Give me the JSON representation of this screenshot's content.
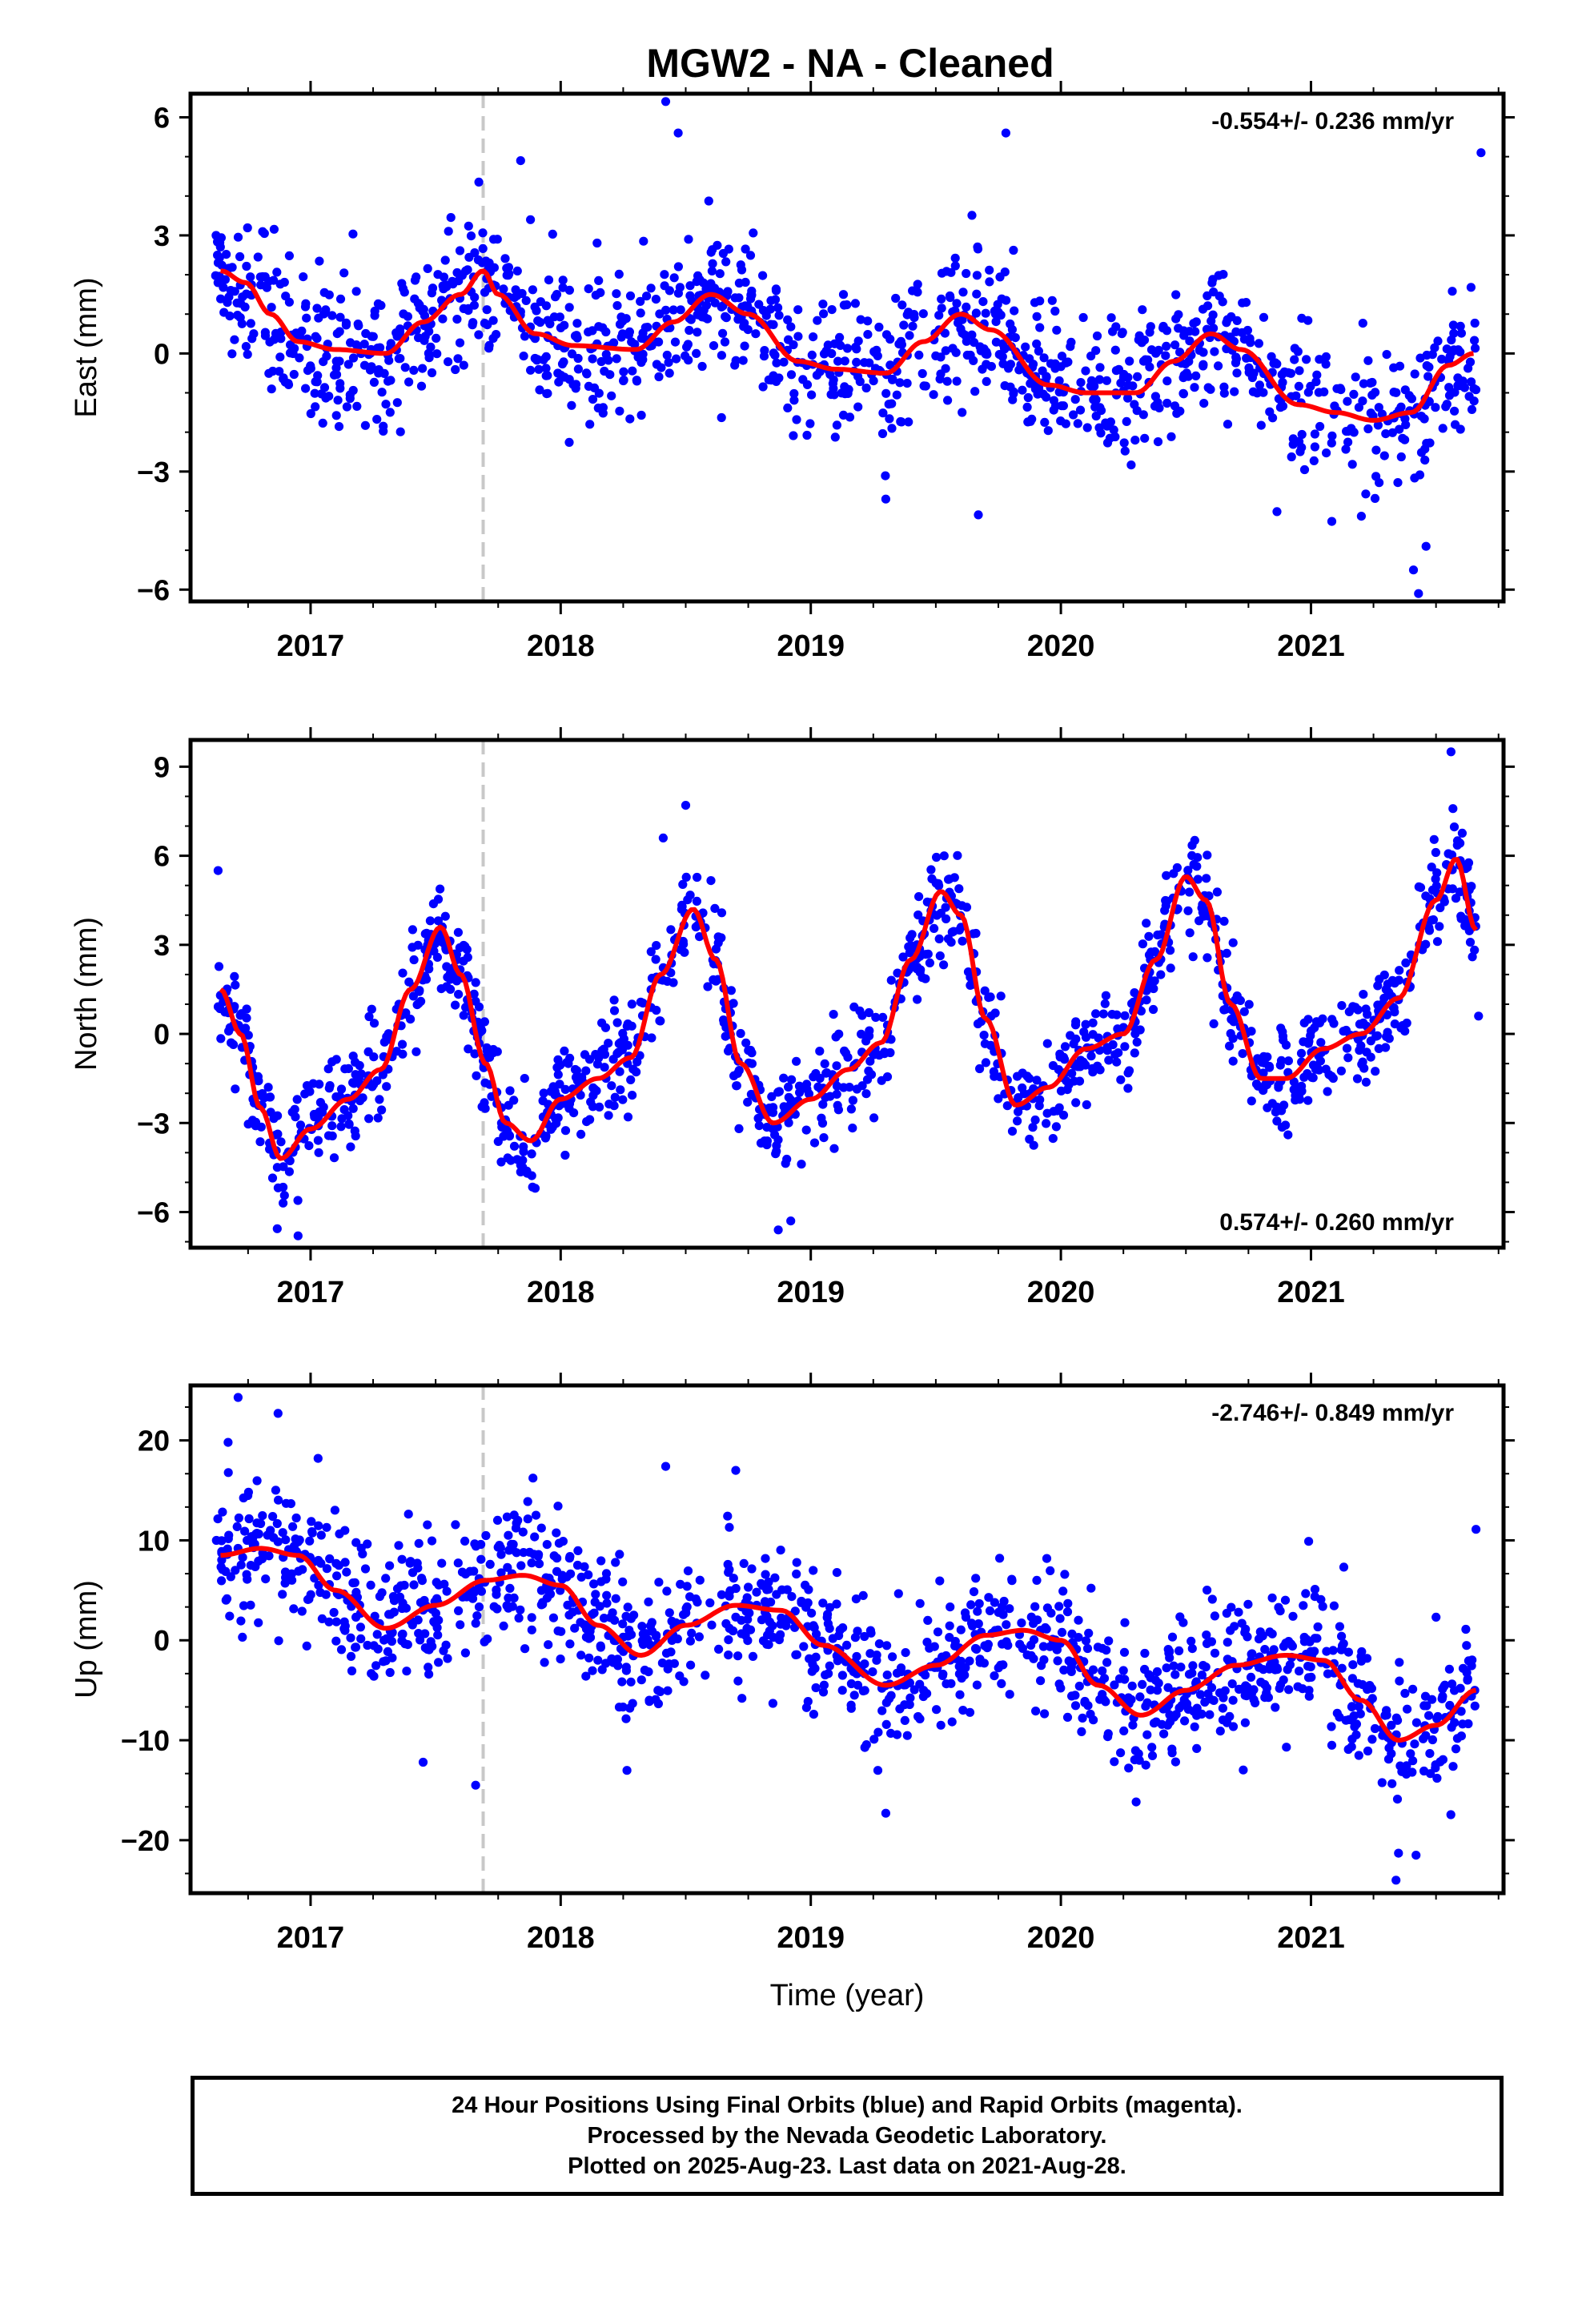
{
  "title": "MGW2  - NA - Cleaned",
  "footer": {
    "line1": "24 Hour Positions Using Final Orbits (blue) and Rapid Orbits (magenta).",
    "line2": "Processed by the Nevada Geodetic Laboratory.",
    "line3": "Plotted on 2025-Aug-23. Last data on 2021-Aug-28."
  },
  "colors": {
    "points": "#0000ff",
    "fit": "#ff0000",
    "reference_line": "#c8c8c8",
    "axes": "#000000"
  },
  "chart_data": [
    {
      "type": "scatter",
      "ylabel": "East (mm)",
      "xlabel": "",
      "rate_text": "-0.554+/- 0.236 mm/yr",
      "rate_position": "top-right",
      "xlim": [
        2016.52,
        2021.77
      ],
      "ylim": [
        -6.3,
        6.6
      ],
      "yticks": [
        -6,
        -3,
        0,
        3,
        6
      ],
      "ytick_labels": [
        "−6",
        "−3",
        "0",
        "3",
        "6"
      ],
      "xticks": [
        2017,
        2018,
        2019,
        2020,
        2021
      ],
      "xtick_labels": [
        "2017",
        "2018",
        "2019",
        "2020",
        "2021"
      ],
      "reference_line_x": 2017.69,
      "fit_curve": {
        "x": [
          2016.64,
          2016.74,
          2016.84,
          2016.95,
          2017.1,
          2017.3,
          2017.45,
          2017.6,
          2017.69,
          2017.75,
          2017.9,
          2018.05,
          2018.3,
          2018.45,
          2018.6,
          2018.75,
          2018.95,
          2019.1,
          2019.3,
          2019.45,
          2019.6,
          2019.72,
          2019.95,
          2020.1,
          2020.3,
          2020.45,
          2020.6,
          2020.72,
          2020.95,
          2021.1,
          2021.25,
          2021.4,
          2021.55,
          2021.65
        ],
        "y": [
          2.1,
          1.8,
          1.0,
          0.3,
          0.1,
          0.0,
          0.8,
          1.5,
          2.1,
          1.5,
          0.5,
          0.2,
          0.1,
          0.8,
          1.5,
          1.0,
          -0.2,
          -0.4,
          -0.5,
          0.3,
          1.0,
          0.6,
          -0.8,
          -1.0,
          -1.0,
          -0.2,
          0.5,
          0.1,
          -1.3,
          -1.5,
          -1.7,
          -1.5,
          -0.3,
          0.0
        ]
      },
      "scatter": {
        "start_year": 2016.62,
        "end_year": 2021.66,
        "n": 1300,
        "noise": 0.9,
        "outliers": [
          [
            2018.42,
            6.4
          ],
          [
            2018.47,
            5.6
          ],
          [
            2019.78,
            5.6
          ],
          [
            2021.41,
            -5.5
          ],
          [
            2021.46,
            -4.9
          ],
          [
            2021.43,
            -6.1
          ],
          [
            2021.68,
            5.1
          ],
          [
            2017.84,
            4.9
          ],
          [
            2019.67,
            -4.1
          ],
          [
            2019.3,
            -3.7
          ]
        ]
      }
    },
    {
      "type": "scatter",
      "ylabel": "North (mm)",
      "xlabel": "",
      "rate_text": "0.574+/- 0.260 mm/yr",
      "rate_position": "bottom-right",
      "xlim": [
        2016.52,
        2021.77
      ],
      "ylim": [
        -7.2,
        9.9
      ],
      "yticks": [
        -6,
        -3,
        0,
        3,
        6,
        9
      ],
      "ytick_labels": [
        "−6",
        "−3",
        "0",
        "3",
        "6",
        "9"
      ],
      "xticks": [
        2017,
        2018,
        2019,
        2020,
        2021
      ],
      "xtick_labels": [
        "2017",
        "2018",
        "2019",
        "2020",
        "2021"
      ],
      "reference_line_x": 2017.69,
      "fit_curve": {
        "x": [
          2016.64,
          2016.72,
          2016.8,
          2016.88,
          2017.0,
          2017.15,
          2017.28,
          2017.4,
          2017.52,
          2017.6,
          2017.7,
          2017.78,
          2017.88,
          2018.0,
          2018.15,
          2018.28,
          2018.4,
          2018.53,
          2018.62,
          2018.72,
          2018.85,
          2019.0,
          2019.15,
          2019.28,
          2019.4,
          2019.52,
          2019.6,
          2019.7,
          2019.82,
          2019.95,
          2020.1,
          2020.25,
          2020.38,
          2020.5,
          2020.58,
          2020.68,
          2020.8,
          2020.9,
          2021.05,
          2021.2,
          2021.35,
          2021.5,
          2021.58,
          2021.66
        ],
        "y": [
          1.5,
          0.0,
          -2.5,
          -4.2,
          -3.2,
          -2.2,
          -1.2,
          1.5,
          3.6,
          2.0,
          -1.0,
          -3.0,
          -3.6,
          -2.2,
          -1.5,
          -0.8,
          2.0,
          4.2,
          2.5,
          -1.0,
          -3.0,
          -2.2,
          -1.2,
          -0.3,
          2.5,
          4.8,
          4.0,
          0.5,
          -2.4,
          -1.8,
          -0.5,
          0.0,
          2.5,
          5.3,
          4.5,
          1.0,
          -1.5,
          -1.5,
          -0.5,
          0.0,
          1.2,
          4.5,
          5.9,
          3.5
        ]
      },
      "scatter": {
        "start_year": 2016.62,
        "end_year": 2021.66,
        "n": 1300,
        "noise": 0.85,
        "outliers": [
          [
            2016.63,
            5.5
          ],
          [
            2018.5,
            7.7
          ],
          [
            2018.41,
            6.6
          ],
          [
            2021.56,
            9.5
          ],
          [
            2018.87,
            -6.6
          ],
          [
            2018.92,
            -6.3
          ],
          [
            2016.95,
            -6.8
          ],
          [
            2021.67,
            0.6
          ]
        ]
      }
    },
    {
      "type": "scatter",
      "ylabel": "Up (mm)",
      "xlabel": "Time (year)",
      "rate_text": "-2.746+/- 0.849 mm/yr",
      "rate_position": "top-right",
      "xlim": [
        2016.52,
        2021.77
      ],
      "ylim": [
        -25.3,
        25.5
      ],
      "yticks": [
        -20,
        -10,
        0,
        10,
        20
      ],
      "ytick_labels": [
        "−20",
        "−10",
        "0",
        "10",
        "20"
      ],
      "xticks": [
        2017,
        2018,
        2019,
        2020,
        2021
      ],
      "xtick_labels": [
        "2017",
        "2018",
        "2019",
        "2020",
        "2021"
      ],
      "reference_line_x": 2017.69,
      "fit_curve": {
        "x": [
          2016.64,
          2016.8,
          2016.95,
          2017.1,
          2017.3,
          2017.5,
          2017.7,
          2017.85,
          2018.0,
          2018.15,
          2018.32,
          2018.5,
          2018.7,
          2018.88,
          2019.05,
          2019.3,
          2019.5,
          2019.7,
          2019.85,
          2020.0,
          2020.15,
          2020.32,
          2020.5,
          2020.7,
          2020.9,
          2021.05,
          2021.2,
          2021.35,
          2021.5,
          2021.66
        ],
        "y": [
          8.5,
          9.2,
          8.5,
          5.0,
          1.2,
          3.5,
          6.0,
          6.5,
          5.5,
          1.5,
          -1.5,
          1.5,
          3.5,
          3.0,
          -0.5,
          -4.5,
          -2.5,
          0.5,
          1.0,
          0.0,
          -4.5,
          -7.5,
          -5.0,
          -2.5,
          -1.5,
          -2.0,
          -6.0,
          -10.0,
          -8.5,
          -5.0
        ]
      },
      "scatter": {
        "start_year": 2016.62,
        "end_year": 2021.66,
        "n": 1300,
        "noise": 3.4,
        "outliers": [
          [
            2016.71,
            24.3
          ],
          [
            2016.87,
            22.7
          ],
          [
            2016.67,
            19.8
          ],
          [
            2017.03,
            18.2
          ],
          [
            2018.42,
            17.4
          ],
          [
            2018.7,
            17.0
          ],
          [
            2017.66,
            -14.5
          ],
          [
            2021.34,
            -24.0
          ],
          [
            2021.42,
            -21.5
          ],
          [
            2021.35,
            -21.3
          ],
          [
            2017.45,
            -12.2
          ],
          [
            2019.3,
            -17.3
          ],
          [
            2021.66,
            11.1
          ]
        ]
      }
    }
  ]
}
